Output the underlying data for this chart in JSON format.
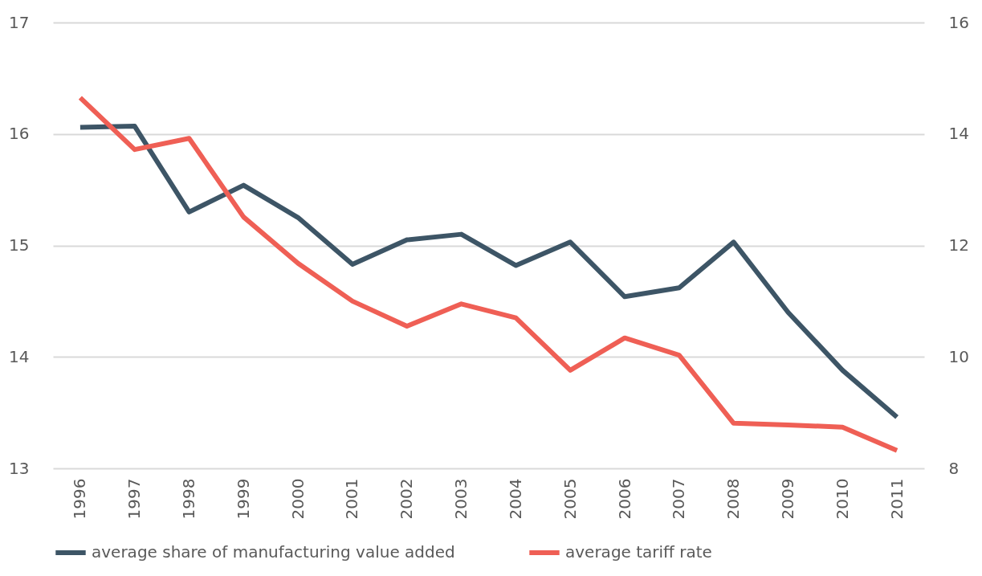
{
  "chart_data": {
    "type": "line",
    "categories": [
      "1996",
      "1997",
      "1998",
      "1999",
      "2000",
      "2001",
      "2002",
      "2003",
      "2004",
      "2005",
      "2006",
      "2007",
      "2008",
      "2009",
      "2010",
      "2011"
    ],
    "series": [
      {
        "name": "average share of manufacturing value added",
        "color": "#3d5566",
        "values": [
          16.06,
          16.07,
          15.3,
          15.54,
          15.25,
          14.83,
          15.05,
          15.1,
          14.82,
          15.03,
          14.54,
          14.62,
          15.03,
          14.4,
          13.88,
          13.46
        ]
      },
      {
        "name": "average tariff rate",
        "color": "#ef5f55",
        "axis": "y2",
        "values": [
          14.65,
          13.72,
          13.92,
          12.51,
          11.68,
          11.0,
          10.55,
          10.95,
          10.7,
          9.76,
          10.34,
          10.03,
          8.81,
          8.78,
          8.74,
          8.32
        ]
      }
    ],
    "ylim": [
      13,
      17
    ],
    "yticks": [
      13,
      14,
      15,
      16,
      17
    ],
    "y2lim": [
      8,
      16
    ],
    "y2ticks": [
      8,
      10,
      12,
      14,
      16
    ],
    "grid": "y",
    "legend": "bottom",
    "marker": "none",
    "line_style": "solid"
  }
}
